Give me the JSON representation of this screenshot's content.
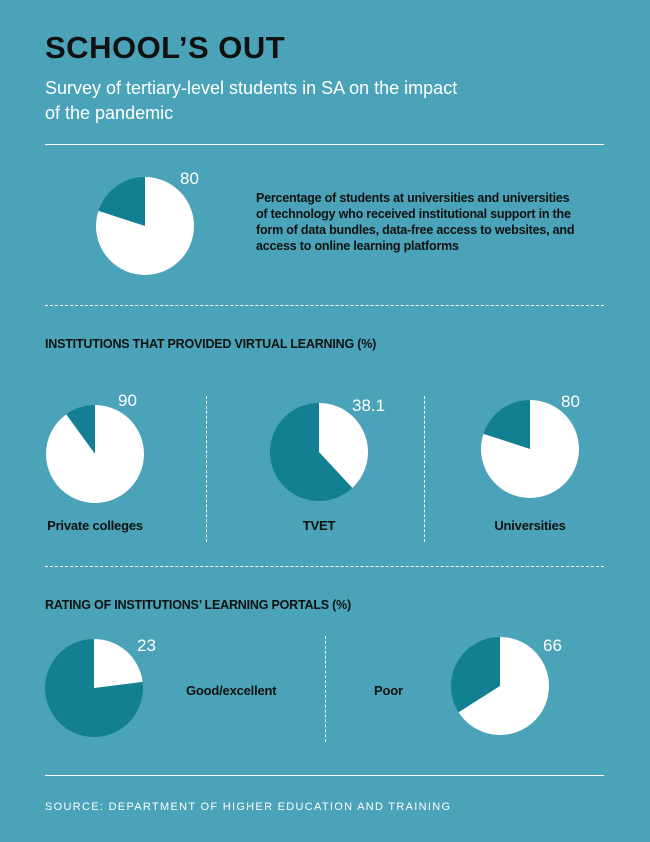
{
  "header": {
    "title": "SCHOOL’S OUT",
    "subtitle": "Survey of tertiary-level students in SA on the impact of the pandemic"
  },
  "colors": {
    "background": "#4aa3b8",
    "slice_main": "#ffffff",
    "slice_rest": "#127f92"
  },
  "chart_data": [
    {
      "type": "pie",
      "title": "",
      "description": "Percentage of students at universities and universities of technology who received institutional support in the form of data bundles, data-free access to websites, and access to online learning platforms",
      "slices": [
        {
          "label": "",
          "value": 80,
          "value_label": "80",
          "color": "#ffffff"
        },
        {
          "label": "",
          "value": 20,
          "value_label": "",
          "color": "#127f92"
        }
      ]
    },
    {
      "type": "pie",
      "group_title": "INSTITUTIONS THAT PROVIDED VIRTUAL LEARNING (%)",
      "pies": [
        {
          "label": "Private colleges",
          "value": 90,
          "value_label": "90"
        },
        {
          "label": "TVET",
          "value": 38.1,
          "value_label": "38.1"
        },
        {
          "label": "Universities",
          "value": 80,
          "value_label": "80"
        }
      ]
    },
    {
      "type": "pie",
      "group_title": "RATING OF INSTITUTIONS’ LEARNING PORTALS (%)",
      "pies": [
        {
          "label": "Good/excellent",
          "value": 23,
          "value_label": "23"
        },
        {
          "label": "Poor",
          "value": 66,
          "value_label": "66"
        }
      ]
    }
  ],
  "footer": {
    "source": "SOURCE: DEPARTMENT OF HIGHER EDUCATION AND TRAINING"
  }
}
